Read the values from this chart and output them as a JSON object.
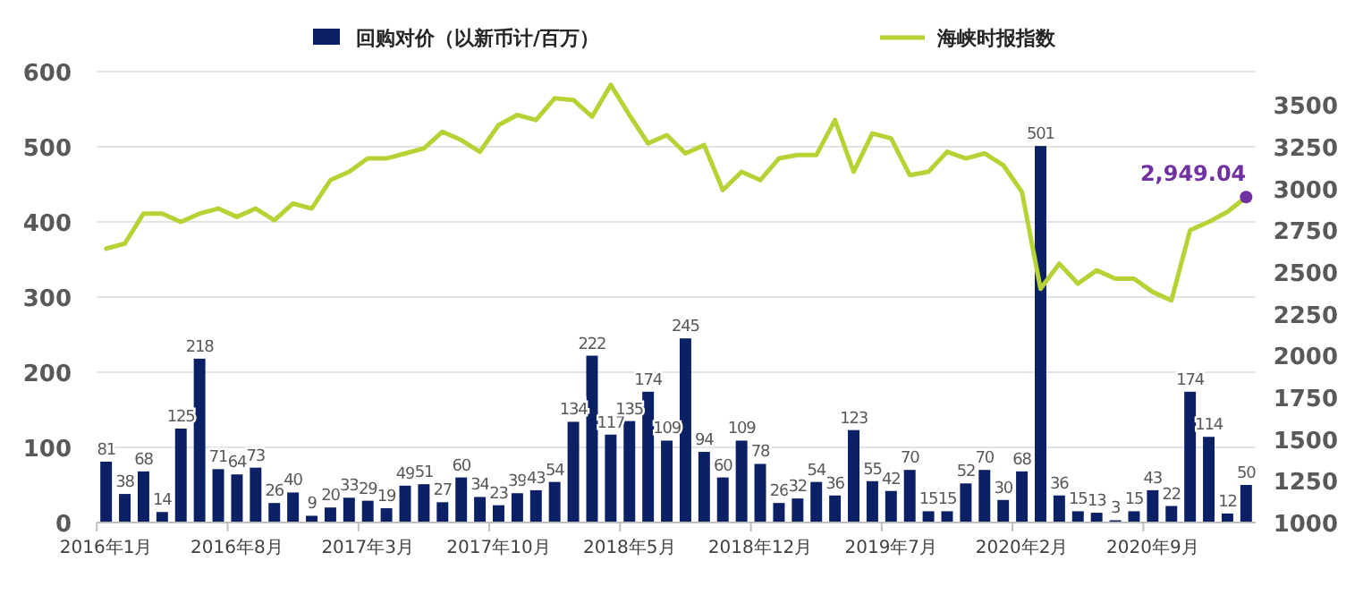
{
  "chart_data": {
    "type": "bar",
    "categories": [
      "2016年1月",
      null,
      null,
      null,
      null,
      null,
      null,
      "2016年8月",
      null,
      null,
      null,
      null,
      null,
      null,
      "2017年3月",
      null,
      null,
      null,
      null,
      null,
      null,
      "2017年10月",
      null,
      null,
      null,
      null,
      null,
      null,
      "2018年5月",
      null,
      null,
      null,
      null,
      null,
      null,
      "2018年12月",
      null,
      null,
      null,
      null,
      null,
      null,
      "2019年7月",
      null,
      null,
      null,
      null,
      null,
      null,
      "2020年2月",
      null,
      null,
      null,
      null,
      null,
      null,
      "2020年9月",
      null,
      null,
      null,
      null,
      null
    ],
    "series": [
      {
        "name": "回购对价（以新币计/百万）",
        "color": "#0b2065",
        "values": [
          81,
          38,
          68,
          14,
          125,
          218,
          71,
          64,
          73,
          26,
          40,
          9,
          20,
          33,
          29,
          19,
          49,
          51,
          27,
          60,
          34,
          23,
          39,
          43,
          54,
          134,
          222,
          117,
          135,
          174,
          109,
          245,
          94,
          60,
          109,
          78,
          26,
          32,
          54,
          36,
          123,
          55,
          42,
          70,
          15,
          15,
          52,
          70,
          30,
          68,
          501,
          36,
          15,
          13,
          3,
          15,
          43,
          22,
          174,
          114,
          12,
          50
        ],
        "value_labels": [
          "81",
          "38",
          "68",
          "14",
          "125",
          "218",
          "71",
          "64",
          "73",
          "26",
          "40",
          "9",
          "20",
          "33",
          "29",
          "19",
          "49",
          "51",
          "27",
          "60",
          "34",
          "23",
          "39",
          "43",
          "54",
          "134",
          "222",
          "117",
          "135",
          "174",
          "109",
          "245",
          "94",
          "60",
          "109",
          "78",
          "26",
          "32",
          "54",
          "36",
          "123",
          "55",
          "42",
          "70",
          "15",
          "15",
          "52",
          "70",
          "30",
          "68",
          "501",
          "36",
          "15",
          "13",
          "3",
          "15",
          "43",
          "22",
          "174",
          "114",
          "12",
          "50"
        ]
      },
      {
        "name": "海峡时报指数",
        "type": "line",
        "axis": "y2",
        "color": "#b5d334",
        "values": [
          2640,
          2670,
          2850,
          2850,
          2800,
          2850,
          2880,
          2830,
          2880,
          2810,
          2910,
          2880,
          3050,
          3100,
          3180,
          3180,
          3210,
          3240,
          3340,
          3290,
          3220,
          3380,
          3440,
          3410,
          3540,
          3530,
          3430,
          3620,
          3440,
          3270,
          3320,
          3210,
          3260,
          2990,
          3100,
          3050,
          3180,
          3200,
          3200,
          3410,
          3100,
          3330,
          3300,
          3080,
          3100,
          3220,
          3180,
          3210,
          3140,
          2980,
          2400,
          2550,
          2430,
          2510,
          2460,
          2460,
          2380,
          2330,
          2750,
          2800,
          2860,
          2949.04
        ],
        "value_labels": [
          null,
          null,
          null,
          null,
          null,
          null,
          null,
          null,
          null,
          null,
          null,
          null,
          null,
          null,
          null,
          null,
          null,
          null,
          null,
          null,
          null,
          null,
          null,
          null,
          null,
          null,
          null,
          null,
          null,
          null,
          null,
          null,
          null,
          null,
          null,
          null,
          null,
          null,
          null,
          null,
          null,
          null,
          null,
          null,
          null,
          null,
          null,
          null,
          null,
          null,
          null,
          null,
          null,
          null,
          null,
          null,
          null,
          null,
          null,
          null,
          null,
          "2,949.04"
        ]
      }
    ],
    "ylim": [
      0,
      600
    ],
    "yticks": [
      0,
      100,
      200,
      300,
      400,
      500,
      600
    ],
    "y2lim": [
      1000,
      3700
    ],
    "y2ticks": [
      1000,
      1250,
      1500,
      1750,
      2000,
      2250,
      2500,
      2750,
      3000,
      3250,
      3500
    ],
    "grid": "y",
    "legend": "top",
    "marker": "none",
    "line_style": "solid"
  }
}
